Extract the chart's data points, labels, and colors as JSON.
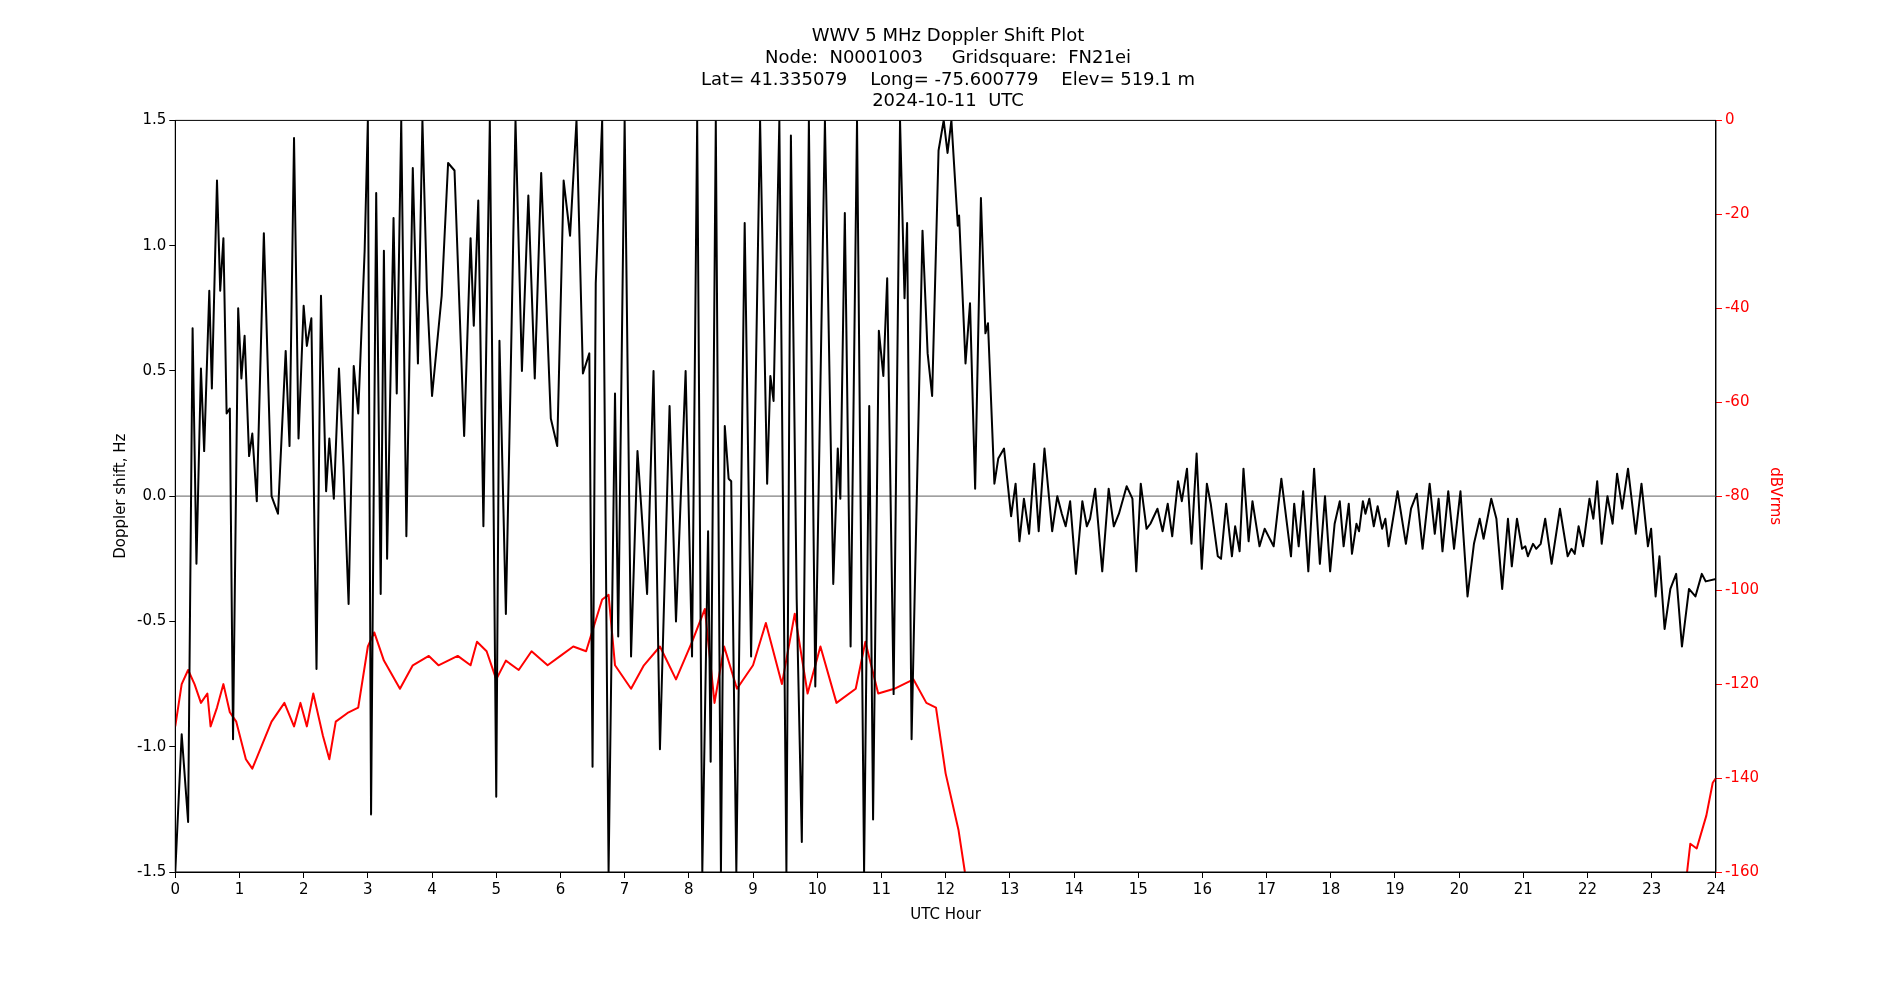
{
  "chart_data": {
    "type": "line",
    "title": "WWV 5 MHz Doppler Shift Plot\nNode:  N0001003     Gridsquare:  FN21ei\nLat= 41.335079    Long= -75.600779    Elev= 519.1 m\n2024-10-11  UTC",
    "xlabel": "UTC Hour",
    "ylabel": "Doppler shift, Hz",
    "y2label": "dBVrms",
    "xlim": [
      0,
      24
    ],
    "xticks": [
      0,
      1,
      2,
      3,
      4,
      5,
      6,
      7,
      8,
      9,
      10,
      11,
      12,
      13,
      14,
      15,
      16,
      17,
      18,
      19,
      20,
      21,
      22,
      23,
      24
    ],
    "ylim": [
      -1.5,
      1.5
    ],
    "yticks": [
      -1.5,
      {
        "value": -1,
        "label": "-1.0"
      },
      -0.5,
      {
        "value": 0,
        "label": "0.0"
      },
      0.5,
      {
        "value": 1,
        "label": "1.0"
      },
      1.5
    ],
    "y2lim": [
      -160,
      0
    ],
    "y2ticks": [
      -160,
      -140,
      -120,
      -100,
      -80,
      -60,
      -40,
      -20,
      0
    ],
    "grid": false,
    "legend": false,
    "ref_lines": [
      {
        "axis": "y",
        "value": 0,
        "color": "#808080"
      }
    ],
    "series": [
      {
        "color": "#000000",
        "x": [
          0,
          0.1,
          0.2,
          0.27,
          0.33,
          0.4,
          0.45,
          0.53,
          0.57,
          0.65,
          0.7,
          0.75,
          0.8,
          0.85,
          0.9,
          0.98,
          1.03,
          1.08,
          1.15,
          1.2,
          1.27,
          1.38,
          1.5,
          1.6,
          1.72,
          1.78,
          1.85,
          1.92,
          2,
          2.05,
          2.12,
          2.2,
          2.27,
          2.35,
          2.4,
          2.47,
          2.55,
          2.62,
          2.7,
          2.78,
          2.85,
          2.95,
          3,
          3.05,
          3.13,
          3.2,
          3.25,
          3.3,
          3.4,
          3.45,
          3.52,
          3.6,
          3.7,
          3.78,
          3.85,
          3.92,
          4,
          4.15,
          4.25,
          4.35,
          4.5,
          4.6,
          4.65,
          4.72,
          4.8,
          4.9,
          4.95,
          5,
          5.05,
          5.15,
          5.22,
          5.3,
          5.4,
          5.5,
          5.6,
          5.7,
          5.85,
          5.95,
          6.05,
          6.15,
          6.25,
          6.35,
          6.45,
          6.5,
          6.55,
          6.65,
          6.75,
          6.85,
          6.9,
          7,
          7.1,
          7.2,
          7.35,
          7.45,
          7.55,
          7.7,
          7.8,
          7.95,
          8.05,
          8.13,
          8.21,
          8.3,
          8.34,
          8.42,
          8.5,
          8.56,
          8.62,
          8.66,
          8.74,
          8.87,
          8.97,
          9.11,
          9.22,
          9.27,
          9.32,
          9.41,
          9.52,
          9.59,
          9.68,
          9.76,
          9.87,
          9.97,
          10.12,
          10.25,
          10.32,
          10.36,
          10.43,
          10.52,
          10.62,
          10.73,
          10.81,
          10.87,
          10.96,
          11.03,
          11.09,
          11.19,
          11.29,
          11.36,
          11.4,
          11.47,
          11.64,
          11.72,
          11.79,
          11.89,
          11.97,
          12.03,
          12.09,
          12.19,
          12.21,
          12.31,
          12.38,
          12.46,
          12.55,
          12.62,
          12.66,
          12.76,
          12.82,
          12.91,
          13.02,
          13.09,
          13.15,
          13.22,
          13.3,
          13.38,
          13.45,
          13.54,
          13.66,
          13.74,
          13.81,
          13.87,
          13.94,
          14.03,
          14.13,
          14.2,
          14.25,
          14.33,
          14.44,
          14.54,
          14.62,
          14.7,
          14.82,
          14.91,
          14.97,
          15.04,
          15.13,
          15.19,
          15.3,
          15.38,
          15.46,
          15.53,
          15.62,
          15.68,
          15.76,
          15.83,
          15.91,
          15.99,
          16.07,
          16.13,
          16.24,
          16.29,
          16.37,
          16.46,
          16.51,
          16.58,
          16.64,
          16.72,
          16.78,
          16.89,
          16.97,
          17.11,
          17.23,
          17.38,
          17.43,
          17.5,
          17.57,
          17.65,
          17.74,
          17.83,
          17.91,
          17.99,
          18.06,
          18.14,
          18.2,
          18.28,
          18.33,
          18.4,
          18.44,
          18.5,
          18.54,
          18.6,
          18.67,
          18.73,
          18.8,
          18.85,
          18.9,
          19.04,
          19.17,
          19.25,
          19.34,
          19.43,
          19.54,
          19.62,
          19.68,
          19.74,
          19.83,
          19.92,
          20.02,
          20.13,
          20.23,
          20.32,
          20.38,
          20.5,
          20.58,
          20.67,
          20.76,
          20.82,
          20.9,
          20.98,
          21.03,
          21.07,
          21.15,
          21.2,
          21.27,
          21.34,
          21.44,
          21.57,
          21.69,
          21.75,
          21.8,
          21.86,
          21.93,
          22.03,
          22.09,
          22.15,
          22.22,
          22.31,
          22.39,
          22.46,
          22.54,
          22.63,
          22.75,
          22.84,
          22.94,
          22.99,
          23.06,
          23.12,
          23.2,
          23.29,
          23.38,
          23.47,
          23.58,
          23.68,
          23.78,
          23.84,
          24
        ],
        "values": [
          -1.5,
          -0.95,
          -1.3,
          0.67,
          -0.27,
          0.51,
          0.18,
          0.82,
          0.43,
          1.26,
          0.82,
          1.03,
          0.33,
          0.35,
          -0.97,
          0.75,
          0.47,
          0.64,
          0.16,
          0.25,
          -0.02,
          1.05,
          0,
          -0.07,
          0.58,
          0.2,
          1.43,
          0.23,
          0.76,
          0.6,
          0.71,
          -0.69,
          0.8,
          0.02,
          0.23,
          -0.01,
          0.51,
          0.12,
          -0.43,
          0.52,
          0.33,
          0.98,
          1.5,
          -1.27,
          1.21,
          -0.39,
          0.98,
          -0.25,
          1.11,
          0.41,
          1.5,
          -0.16,
          1.31,
          0.53,
          1.5,
          0.82,
          0.4,
          0.8,
          1.33,
          1.3,
          0.24,
          1.03,
          0.68,
          1.18,
          -0.12,
          1.5,
          0.2,
          -1.2,
          0.62,
          -0.47,
          0.42,
          1.5,
          0.5,
          1.2,
          0.47,
          1.29,
          0.31,
          0.2,
          1.26,
          1.04,
          1.5,
          0.49,
          0.57,
          -1.08,
          0.85,
          1.5,
          -1.5,
          0.41,
          -0.56,
          1.5,
          -0.64,
          0.18,
          -0.39,
          0.5,
          -1.01,
          0.36,
          -0.5,
          0.5,
          -0.64,
          1.5,
          -1.5,
          -0.14,
          -1.06,
          1.5,
          -1.5,
          0.28,
          0.07,
          0.06,
          -1.5,
          1.09,
          -0.64,
          1.5,
          0.05,
          0.48,
          0.38,
          1.5,
          -1.5,
          1.44,
          -0.41,
          -1.38,
          1.5,
          -0.76,
          1.5,
          -0.35,
          0.19,
          -0.01,
          1.13,
          -0.6,
          1.5,
          -1.5,
          0.36,
          -1.29,
          0.66,
          0.48,
          0.87,
          -0.79,
          1.5,
          0.79,
          1.09,
          -0.97,
          1.06,
          0.57,
          0.4,
          1.38,
          1.5,
          1.37,
          1.5,
          1.08,
          1.12,
          0.53,
          0.77,
          0.03,
          1.19,
          0.65,
          0.69,
          0.05,
          0.15,
          0.19,
          -0.08,
          0.05,
          -0.18,
          -0.01,
          -0.15,
          0.13,
          -0.14,
          0.19,
          -0.14,
          0,
          -0.07,
          -0.12,
          -0.02,
          -0.31,
          -0.02,
          -0.12,
          -0.09,
          0.03,
          -0.3,
          0.03,
          -0.12,
          -0.07,
          0.04,
          -0.01,
          -0.3,
          0.05,
          -0.13,
          -0.11,
          -0.05,
          -0.14,
          -0.03,
          -0.16,
          0.06,
          -0.02,
          0.11,
          -0.19,
          0.17,
          -0.29,
          0.05,
          -0.03,
          -0.24,
          -0.25,
          -0.03,
          -0.24,
          -0.12,
          -0.22,
          0.11,
          -0.18,
          -0.02,
          -0.2,
          -0.13,
          -0.2,
          0.07,
          -0.24,
          -0.03,
          -0.2,
          0.02,
          -0.3,
          0.11,
          -0.27,
          0,
          -0.3,
          -0.11,
          -0.02,
          -0.2,
          -0.03,
          -0.23,
          -0.11,
          -0.14,
          -0.02,
          -0.07,
          -0.01,
          -0.12,
          -0.04,
          -0.13,
          -0.09,
          -0.2,
          0.02,
          -0.19,
          -0.05,
          0.01,
          -0.21,
          0.05,
          -0.15,
          -0.01,
          -0.22,
          0.02,
          -0.21,
          0.02,
          -0.4,
          -0.19,
          -0.09,
          -0.17,
          -0.01,
          -0.09,
          -0.37,
          -0.09,
          -0.28,
          -0.09,
          -0.21,
          -0.2,
          -0.24,
          -0.19,
          -0.21,
          -0.19,
          -0.09,
          -0.27,
          -0.05,
          -0.24,
          -0.21,
          -0.23,
          -0.12,
          -0.2,
          -0.01,
          -0.09,
          0.06,
          -0.19,
          0,
          -0.11,
          0.09,
          -0.05,
          0.11,
          -0.15,
          0.05,
          -0.2,
          -0.13,
          -0.4,
          -0.24,
          -0.53,
          -0.37,
          -0.31,
          -0.6,
          -0.37,
          -0.4,
          -0.31,
          -0.34,
          -0.33
        ]
      },
      {
        "color": "#ff0000",
        "axis": "y2",
        "x": [
          0,
          0.1,
          0.2,
          0.3,
          0.4,
          0.5,
          0.55,
          0.65,
          0.75,
          0.85,
          0.95,
          1.1,
          1.2,
          1.35,
          1.5,
          1.7,
          1.85,
          1.95,
          2.05,
          2.15,
          2.3,
          2.4,
          2.5,
          2.7,
          2.85,
          3,
          3.1,
          3.25,
          3.5,
          3.7,
          3.95,
          4.1,
          4.4,
          4.6,
          4.7,
          4.85,
          5,
          5.15,
          5.35,
          5.55,
          5.8,
          6,
          6.2,
          6.4,
          6.65,
          6.75,
          6.85,
          7.1,
          7.3,
          7.55,
          7.8,
          8.05,
          8.25,
          8.4,
          8.55,
          8.75,
          9,
          9.2,
          9.45,
          9.65,
          9.85,
          10.05,
          10.3,
          10.6,
          10.75,
          10.95,
          11.2,
          11.5,
          11.7,
          11.85,
          12,
          12.2,
          12.3,
          18,
          23.55,
          23.6,
          23.7,
          23.85,
          23.95,
          24
        ],
        "values": [
          -129,
          -120,
          -117,
          -120,
          -124,
          -122,
          -129,
          -125,
          -120,
          -126,
          -128,
          -136,
          -138,
          -133,
          -128,
          -124,
          -129,
          -124,
          -129,
          -122,
          -131,
          -136,
          -128,
          -126,
          -125,
          -112,
          -109,
          -115,
          -121,
          -116,
          -114,
          -116,
          -114,
          -116,
          -111,
          -113,
          -119,
          -115,
          -117,
          -113,
          -116,
          -114,
          -112,
          -113,
          -102,
          -101,
          -116,
          -121,
          -116,
          -112,
          -119,
          -111,
          -104,
          -124,
          -112,
          -121,
          -116,
          -107,
          -120,
          -105,
          -122,
          -112,
          -124,
          -121,
          -111,
          -122,
          -121,
          -119,
          -124,
          -125,
          -139,
          -151,
          -160,
          null,
          -160,
          -154,
          -155,
          -148,
          -141,
          -140
        ]
      }
    ]
  }
}
